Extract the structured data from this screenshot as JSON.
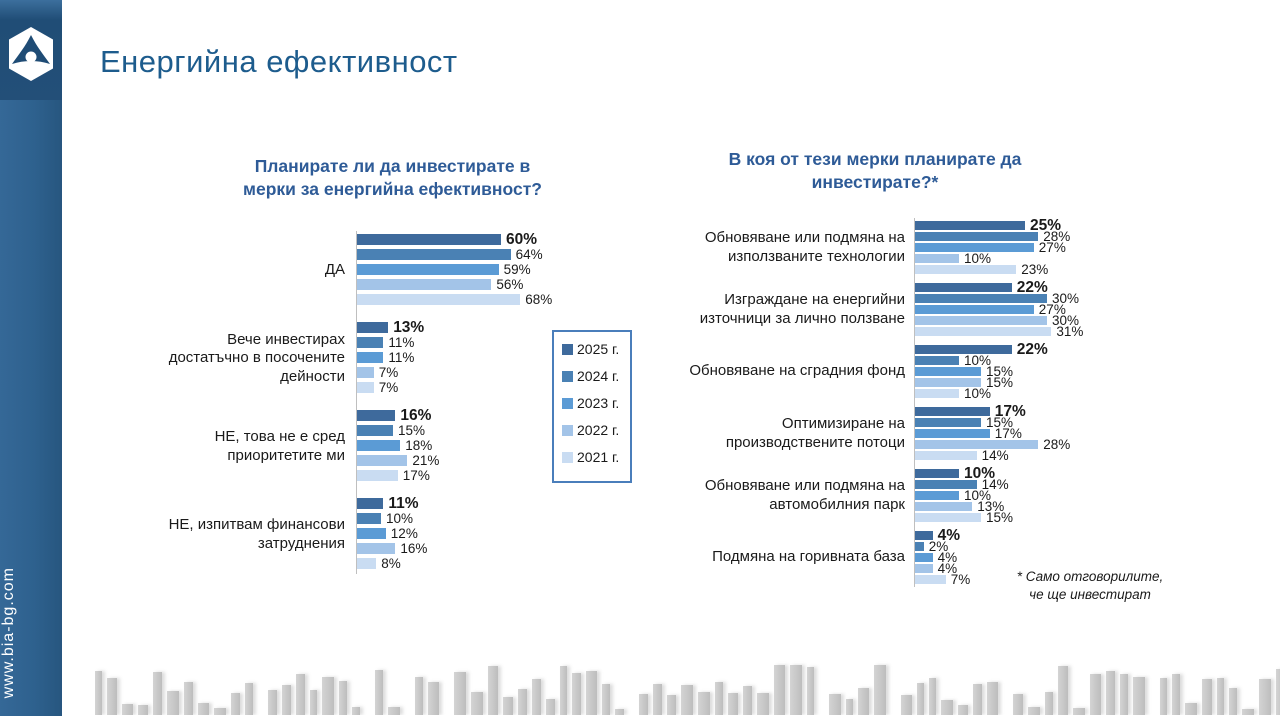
{
  "page": {
    "title": "Енергийна ефективност",
    "website": "www.bia-bg.com"
  },
  "colors": {
    "series": [
      "#3e6a9c",
      "#4a81b4",
      "#5b9bd5",
      "#a3c4e8",
      "#c9dcf2"
    ],
    "header_title": "#1d5c8d",
    "chart_title": "#2e5b97",
    "legend_border": "#4a7ebb"
  },
  "legend": {
    "items": [
      {
        "label": "2025 г.",
        "color": "#3e6a9c"
      },
      {
        "label": "2024 г.",
        "color": "#4a81b4"
      },
      {
        "label": "2023 г.",
        "color": "#5b9bd5"
      },
      {
        "label": "2022 г.",
        "color": "#a3c4e8"
      },
      {
        "label": "2021 г.",
        "color": "#c9dcf2"
      }
    ]
  },
  "footnote": {
    "line1": "* Само отговорилите,",
    "line2": "че ще инвестират"
  },
  "chart_data": [
    {
      "type": "bar",
      "orientation": "horizontal",
      "title": "Планирате ли да инвестирате в мерки за енергийна ефективност?",
      "title_lines": [
        "Планирате ли да инвестирате в",
        "мерки за енергийна ефективност?"
      ],
      "value_suffix": "%",
      "xlim": [
        0,
        70
      ],
      "grid": false,
      "legend_position": "right",
      "categories": [
        "ДА",
        "Вече инвестирах достатъчно в посочените дейности",
        "НЕ, това не е сред приоритетите ми",
        "НЕ, изпитвам финансови затруднения"
      ],
      "series": [
        {
          "name": "2025 г.",
          "values": [
            60,
            13,
            16,
            11
          ]
        },
        {
          "name": "2024 г.",
          "values": [
            64,
            11,
            15,
            10
          ]
        },
        {
          "name": "2023 г.",
          "values": [
            59,
            11,
            18,
            12
          ]
        },
        {
          "name": "2022 г.",
          "values": [
            56,
            7,
            21,
            16
          ]
        },
        {
          "name": "2021 г.",
          "values": [
            68,
            7,
            17,
            8
          ]
        }
      ]
    },
    {
      "type": "bar",
      "orientation": "horizontal",
      "title": "В коя от тези мерки планирате да инвестирате?*",
      "title_lines": [
        "В коя от тези мерки планирате да",
        "инвестирате?*"
      ],
      "value_suffix": "%",
      "xlim": [
        0,
        32
      ],
      "grid": false,
      "legend_position": "none",
      "categories": [
        "Обновяване или подмяна на използваните технологии",
        "Изграждане на енергийни източници за лично ползване",
        "Обновяване на сградния фонд",
        "Оптимизиране на производствените потоци",
        "Обновяване или подмяна на автомобилния парк",
        "Подмяна на горивната база"
      ],
      "series": [
        {
          "name": "2025 г.",
          "values": [
            25,
            22,
            22,
            17,
            10,
            4
          ]
        },
        {
          "name": "2024 г.",
          "values": [
            28,
            30,
            10,
            15,
            14,
            2
          ]
        },
        {
          "name": "2023 г.",
          "values": [
            27,
            27,
            15,
            17,
            10,
            4
          ]
        },
        {
          "name": "2022 г.",
          "values": [
            10,
            30,
            15,
            28,
            13,
            4
          ]
        },
        {
          "name": "2021 г.",
          "values": [
            23,
            31,
            10,
            14,
            15,
            7
          ]
        }
      ]
    }
  ]
}
